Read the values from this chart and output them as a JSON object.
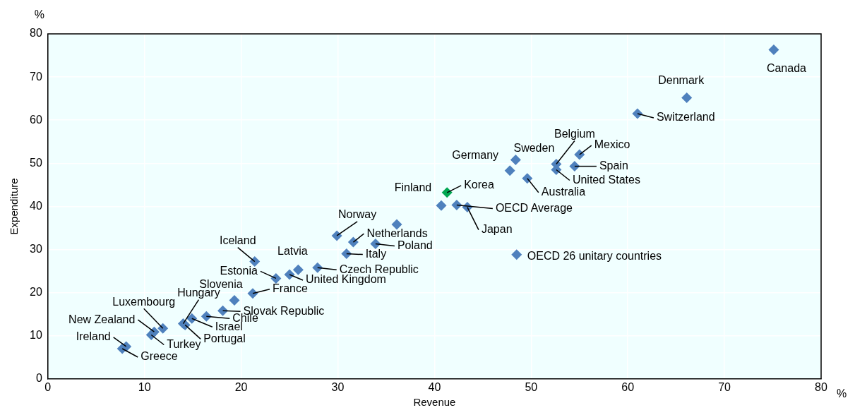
{
  "chart_data": {
    "type": "scatter",
    "xlabel": "Revenue",
    "ylabel": "Expenditure",
    "xlim": [
      0,
      80
    ],
    "ylim": [
      0,
      80
    ],
    "xticks": [
      0,
      10,
      20,
      30,
      40,
      50,
      60,
      70,
      80
    ],
    "yticks": [
      0,
      10,
      20,
      30,
      40,
      50,
      60,
      70,
      80
    ],
    "grid": true,
    "marker": "diamond",
    "series": [
      {
        "colors": [
          "#4f81bd",
          "#4f81bd",
          "#4f81bd",
          "#4f81bd",
          "#4f81bd",
          "#4f81bd",
          "#4f81bd",
          "#4f81bd",
          "#4f81bd",
          "#4f81bd",
          "#00a651",
          "#4f81bd",
          "#4f81bd",
          "#4f81bd",
          "#4f81bd",
          "#4f81bd",
          "#4f81bd",
          "#4f81bd",
          "#4f81bd",
          "#4f81bd",
          "#4f81bd",
          "#4f81bd",
          "#4f81bd",
          "#4f81bd",
          "#4f81bd",
          "#4f81bd",
          "#4f81bd",
          "#4f81bd",
          "#4f81bd",
          "#4f81bd",
          "#4f81bd",
          "#4f81bd",
          "#4f81bd",
          "#4f81bd",
          "#4f81bd",
          "#4f81bd",
          "#4f81bd"
        ],
        "x": [
          75.1,
          66.1,
          61.0,
          55.0,
          54.5,
          52.6,
          52.6,
          48.4,
          47.8,
          49.6,
          41.3,
          40.7,
          42.3,
          43.4,
          48.5,
          36.1,
          29.9,
          31.6,
          33.9,
          30.9,
          27.9,
          25.9,
          25.0,
          23.6,
          21.4,
          21.2,
          19.3,
          18.1,
          16.4,
          14.9,
          14.2,
          14.0,
          11.9,
          11.0,
          10.7,
          8.1,
          7.7
        ],
        "values": [
          76.3,
          65.2,
          61.5,
          52.0,
          49.3,
          49.8,
          48.5,
          50.8,
          48.3,
          46.5,
          43.2,
          40.2,
          40.3,
          39.8,
          28.8,
          35.8,
          33.2,
          31.7,
          31.3,
          29.0,
          25.8,
          25.3,
          24.2,
          23.3,
          27.2,
          19.8,
          18.2,
          15.8,
          14.5,
          14.0,
          12.5,
          12.8,
          11.7,
          10.9,
          10.2,
          7.5,
          7.0
        ]
      }
    ],
    "annotations": [
      "%",
      "%",
      {
        "text": "Canada",
        "x": 75.1,
        "y": 76.3
      },
      {
        "text": "Denmark",
        "x": 66.1,
        "y": 65.2
      },
      {
        "text": "Switzerland",
        "x": 61.0,
        "y": 61.5
      },
      {
        "text": "Mexico",
        "x": 55.0,
        "y": 52.0
      },
      {
        "text": "Spain",
        "x": 54.5,
        "y": 49.3
      },
      {
        "text": "Belgium",
        "x": 52.6,
        "y": 49.8
      },
      {
        "text": "United States",
        "x": 52.6,
        "y": 48.5
      },
      {
        "text": "Sweden",
        "x": 48.4,
        "y": 50.8
      },
      {
        "text": "Germany",
        "x": 47.8,
        "y": 48.3
      },
      {
        "text": "Australia",
        "x": 49.6,
        "y": 46.5
      },
      {
        "text": "Korea",
        "x": 41.3,
        "y": 43.2
      },
      {
        "text": "Finland",
        "x": 40.7,
        "y": 40.2
      },
      {
        "text": "OECD Average",
        "x": 42.3,
        "y": 40.3
      },
      {
        "text": "Japan",
        "x": 43.4,
        "y": 39.8
      },
      {
        "text": "OECD 26 unitary countries",
        "x": 48.5,
        "y": 28.8
      },
      {
        "text": "Norway",
        "x": 29.9,
        "y": 33.2
      },
      {
        "text": "Netherlands",
        "x": 31.6,
        "y": 31.7
      },
      {
        "text": "Poland",
        "x": 33.9,
        "y": 31.3
      },
      {
        "text": "Italy",
        "x": 30.9,
        "y": 29.0
      },
      {
        "text": "Czech Republic",
        "x": 27.9,
        "y": 25.8
      },
      {
        "text": "Latvia",
        "x": 25.9,
        "y": 25.3
      },
      {
        "text": "United Kingdom",
        "x": 25.0,
        "y": 24.2
      },
      {
        "text": "Estonia",
        "x": 23.6,
        "y": 23.3
      },
      {
        "text": "Iceland",
        "x": 21.4,
        "y": 27.2
      },
      {
        "text": "France",
        "x": 21.2,
        "y": 19.8
      },
      {
        "text": "Slovenia",
        "x": 19.3,
        "y": 18.2
      },
      {
        "text": "Slovak Republic",
        "x": 18.1,
        "y": 15.8
      },
      {
        "text": "Chile",
        "x": 16.4,
        "y": 14.5
      },
      {
        "text": "Israel",
        "x": 14.9,
        "y": 14.0
      },
      {
        "text": "Portugal",
        "x": 14.2,
        "y": 12.5
      },
      {
        "text": "Hungary",
        "x": 14.0,
        "y": 12.8
      },
      {
        "text": "Luxembourg",
        "x": 11.9,
        "y": 11.7
      },
      {
        "text": "New Zealand",
        "x": 11.0,
        "y": 10.9
      },
      {
        "text": "Turkey",
        "x": 10.7,
        "y": 10.2
      },
      {
        "text": "Ireland",
        "x": 8.1,
        "y": 7.5
      },
      {
        "text": "Greece",
        "x": 7.7,
        "y": 7.0
      }
    ]
  }
}
